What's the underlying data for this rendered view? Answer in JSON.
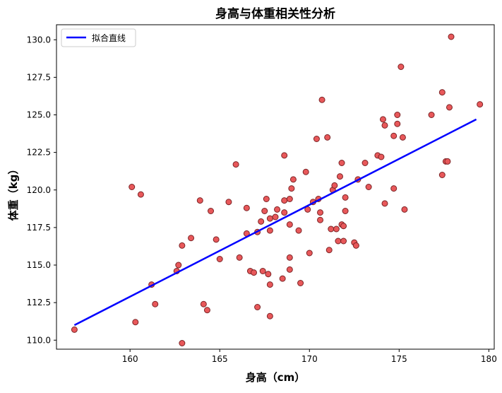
{
  "chart_data": {
    "type": "scatter",
    "title": "身高与体重相关性分析",
    "xlabel": "身高（cm）",
    "ylabel": "体重（kg）",
    "xlim": [
      155.9,
      180.3
    ],
    "ylim": [
      109.4,
      131.0
    ],
    "xticks": [
      160,
      165,
      170,
      175,
      180
    ],
    "xtick_labels": [
      "160",
      "165",
      "170",
      "175",
      "180"
    ],
    "yticks": [
      110.0,
      112.5,
      115.0,
      117.5,
      120.0,
      122.5,
      125.0,
      127.5,
      130.0
    ],
    "ytick_labels": [
      "110.0",
      "112.5",
      "115.0",
      "117.5",
      "120.0",
      "122.5",
      "125.0",
      "127.5",
      "130.0"
    ],
    "grid": false,
    "legend": {
      "position": "top-left",
      "entries": [
        "拟合直线"
      ]
    },
    "colors": {
      "points_fill": "#e8585a",
      "points_edge": "#7a2325",
      "line": "#0000ff"
    },
    "points": [
      [
        156.9,
        110.7
      ],
      [
        160.1,
        120.2
      ],
      [
        160.3,
        111.2
      ],
      [
        160.6,
        119.7
      ],
      [
        161.2,
        113.7
      ],
      [
        161.4,
        112.4
      ],
      [
        162.6,
        114.6
      ],
      [
        162.7,
        115.0
      ],
      [
        162.9,
        116.3
      ],
      [
        162.9,
        109.8
      ],
      [
        163.4,
        116.8
      ],
      [
        163.9,
        119.3
      ],
      [
        164.1,
        112.4
      ],
      [
        164.3,
        112.0
      ],
      [
        164.5,
        118.6
      ],
      [
        164.8,
        116.7
      ],
      [
        165.0,
        115.4
      ],
      [
        165.5,
        119.2
      ],
      [
        165.9,
        121.7
      ],
      [
        166.1,
        115.5
      ],
      [
        166.5,
        117.1
      ],
      [
        166.5,
        118.8
      ],
      [
        166.7,
        114.6
      ],
      [
        166.9,
        114.5
      ],
      [
        167.1,
        117.2
      ],
      [
        167.1,
        112.2
      ],
      [
        167.3,
        117.9
      ],
      [
        167.4,
        114.6
      ],
      [
        167.5,
        118.6
      ],
      [
        167.6,
        119.4
      ],
      [
        167.7,
        114.4
      ],
      [
        167.8,
        118.1
      ],
      [
        167.8,
        117.3
      ],
      [
        167.8,
        113.7
      ],
      [
        167.8,
        111.6
      ],
      [
        168.1,
        118.2
      ],
      [
        168.2,
        118.7
      ],
      [
        168.5,
        114.1
      ],
      [
        168.6,
        119.3
      ],
      [
        168.6,
        118.5
      ],
      [
        168.6,
        122.3
      ],
      [
        168.9,
        119.4
      ],
      [
        168.9,
        117.7
      ],
      [
        168.9,
        114.7
      ],
      [
        168.9,
        115.5
      ],
      [
        169.0,
        120.1
      ],
      [
        169.1,
        120.7
      ],
      [
        169.4,
        117.3
      ],
      [
        169.5,
        113.8
      ],
      [
        169.8,
        121.2
      ],
      [
        169.9,
        118.7
      ],
      [
        170.0,
        115.8
      ],
      [
        170.2,
        119.2
      ],
      [
        170.4,
        123.4
      ],
      [
        170.5,
        119.4
      ],
      [
        170.6,
        118.5
      ],
      [
        170.6,
        118.0
      ],
      [
        170.7,
        126.0
      ],
      [
        171.0,
        123.5
      ],
      [
        171.1,
        116.0
      ],
      [
        171.2,
        117.4
      ],
      [
        171.3,
        120.0
      ],
      [
        171.4,
        120.3
      ],
      [
        171.5,
        117.4
      ],
      [
        171.6,
        116.6
      ],
      [
        171.7,
        120.9
      ],
      [
        171.8,
        121.8
      ],
      [
        171.8,
        117.7
      ],
      [
        171.9,
        116.6
      ],
      [
        171.9,
        117.6
      ],
      [
        172.0,
        118.6
      ],
      [
        172.0,
        119.5
      ],
      [
        172.5,
        116.5
      ],
      [
        172.6,
        116.3
      ],
      [
        172.7,
        120.7
      ],
      [
        173.1,
        121.8
      ],
      [
        173.3,
        120.2
      ],
      [
        173.8,
        122.3
      ],
      [
        174.0,
        122.2
      ],
      [
        174.1,
        124.7
      ],
      [
        174.2,
        124.3
      ],
      [
        174.2,
        119.1
      ],
      [
        174.7,
        123.6
      ],
      [
        174.7,
        120.1
      ],
      [
        174.9,
        124.4
      ],
      [
        174.9,
        125.0
      ],
      [
        175.1,
        128.2
      ],
      [
        175.2,
        123.5
      ],
      [
        175.3,
        118.7
      ],
      [
        176.8,
        125.0
      ],
      [
        177.4,
        126.5
      ],
      [
        177.4,
        121.0
      ],
      [
        177.6,
        121.9
      ],
      [
        177.7,
        121.9
      ],
      [
        177.8,
        125.5
      ],
      [
        177.9,
        130.2
      ],
      [
        179.5,
        125.7
      ]
    ],
    "fit_line": {
      "name": "拟合直线",
      "x": [
        156.9,
        179.3
      ],
      "y": [
        111.0,
        124.7
      ]
    }
  }
}
